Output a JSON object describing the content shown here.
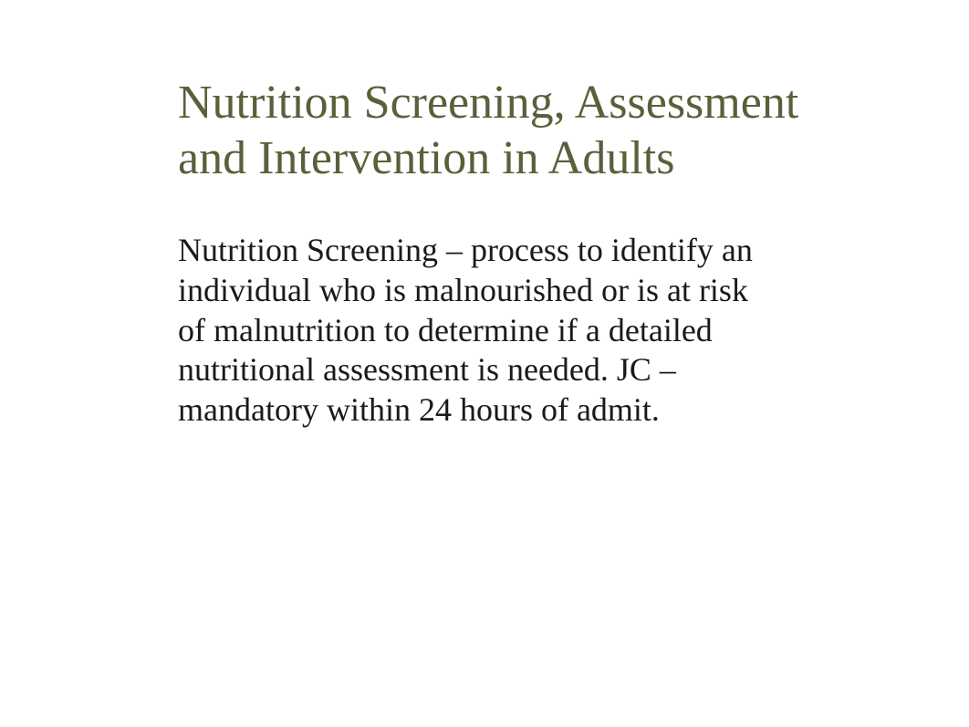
{
  "slide": {
    "title": "Nutrition Screening, Assessment and Intervention in Adults",
    "body": "Nutrition Screening – process to identify an individual who is malnourished or is at risk of malnutrition to determine if a detailed nutritional assessment is needed. JC – mandatory within 24 hours of admit.",
    "title_color": "#5b5f3a",
    "body_color": "#1a1a1a",
    "background_color": "#ffffff",
    "title_fontsize": 52,
    "body_fontsize": 36,
    "font_family": "Georgia, serif"
  }
}
